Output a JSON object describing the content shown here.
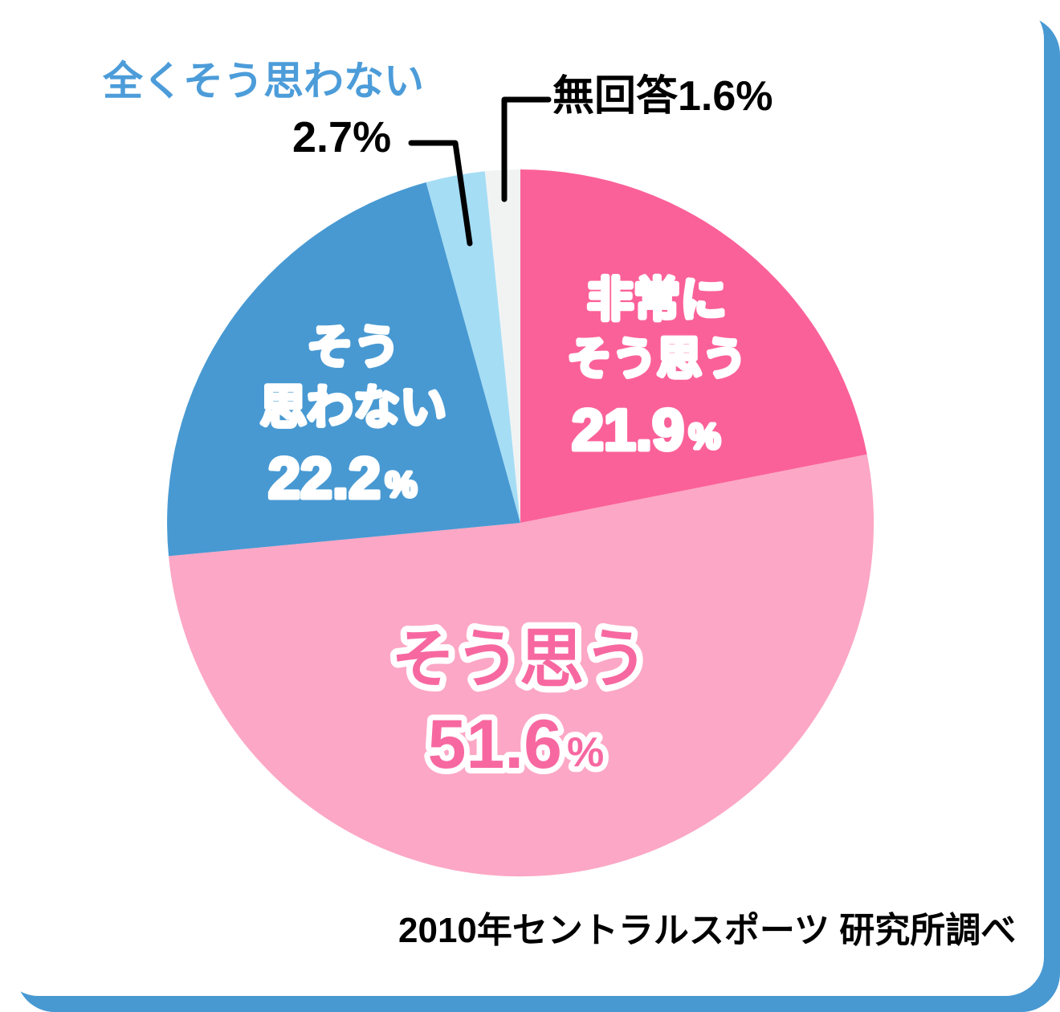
{
  "frame": {
    "accent_color": "#4899D2",
    "card_color": "#FFFFFF"
  },
  "chart_data": {
    "type": "pie",
    "title": "",
    "source": "2010年セントラルスポーツ 研究所調べ",
    "start_angle_deg": -90,
    "direction": "clockwise",
    "slices": [
      {
        "name": "strongly-agree",
        "label": "非常にそう思う",
        "value": 21.9,
        "display": "21.9%",
        "color": "#FB6199",
        "text_color": "#FFFFFF",
        "label_placement": "inside"
      },
      {
        "name": "agree",
        "label": "そう思う",
        "value": 51.6,
        "display": "51.6%",
        "color": "#FCA7C5",
        "text_color": "#F768A1",
        "label_placement": "inside"
      },
      {
        "name": "disagree",
        "label": "そう思わない",
        "value": 22.2,
        "display": "22.2%",
        "color": "#4899D2",
        "text_color": "#FFFFFF",
        "label_placement": "inside"
      },
      {
        "name": "strongly-disagree",
        "label": "全くそう思わない",
        "value": 2.7,
        "display": "2.7%",
        "color": "#A5DDF5",
        "label_placement": "outside"
      },
      {
        "name": "no-answer",
        "label": "無回答",
        "value": 1.6,
        "display": "1.6%",
        "color": "#F1F3F3",
        "label_placement": "outside"
      }
    ]
  },
  "pie_labels": {
    "strongly_agree": {
      "line1": "非常に",
      "line2": "そう思う",
      "value": "21.9",
      "pct": "%"
    },
    "agree": {
      "line1": "そう思う",
      "value": "51.6",
      "pct": "%"
    },
    "disagree": {
      "line1": "そう",
      "line2": "思わない",
      "value": "22.2",
      "pct": "%"
    },
    "strongly_disagree": {
      "label": "全くそう思わない",
      "value_text": "2.7%"
    },
    "no_answer": {
      "label_with_value": "無回答1.6%"
    }
  },
  "source_note": "2010年セントラルスポーツ 研究所調べ"
}
